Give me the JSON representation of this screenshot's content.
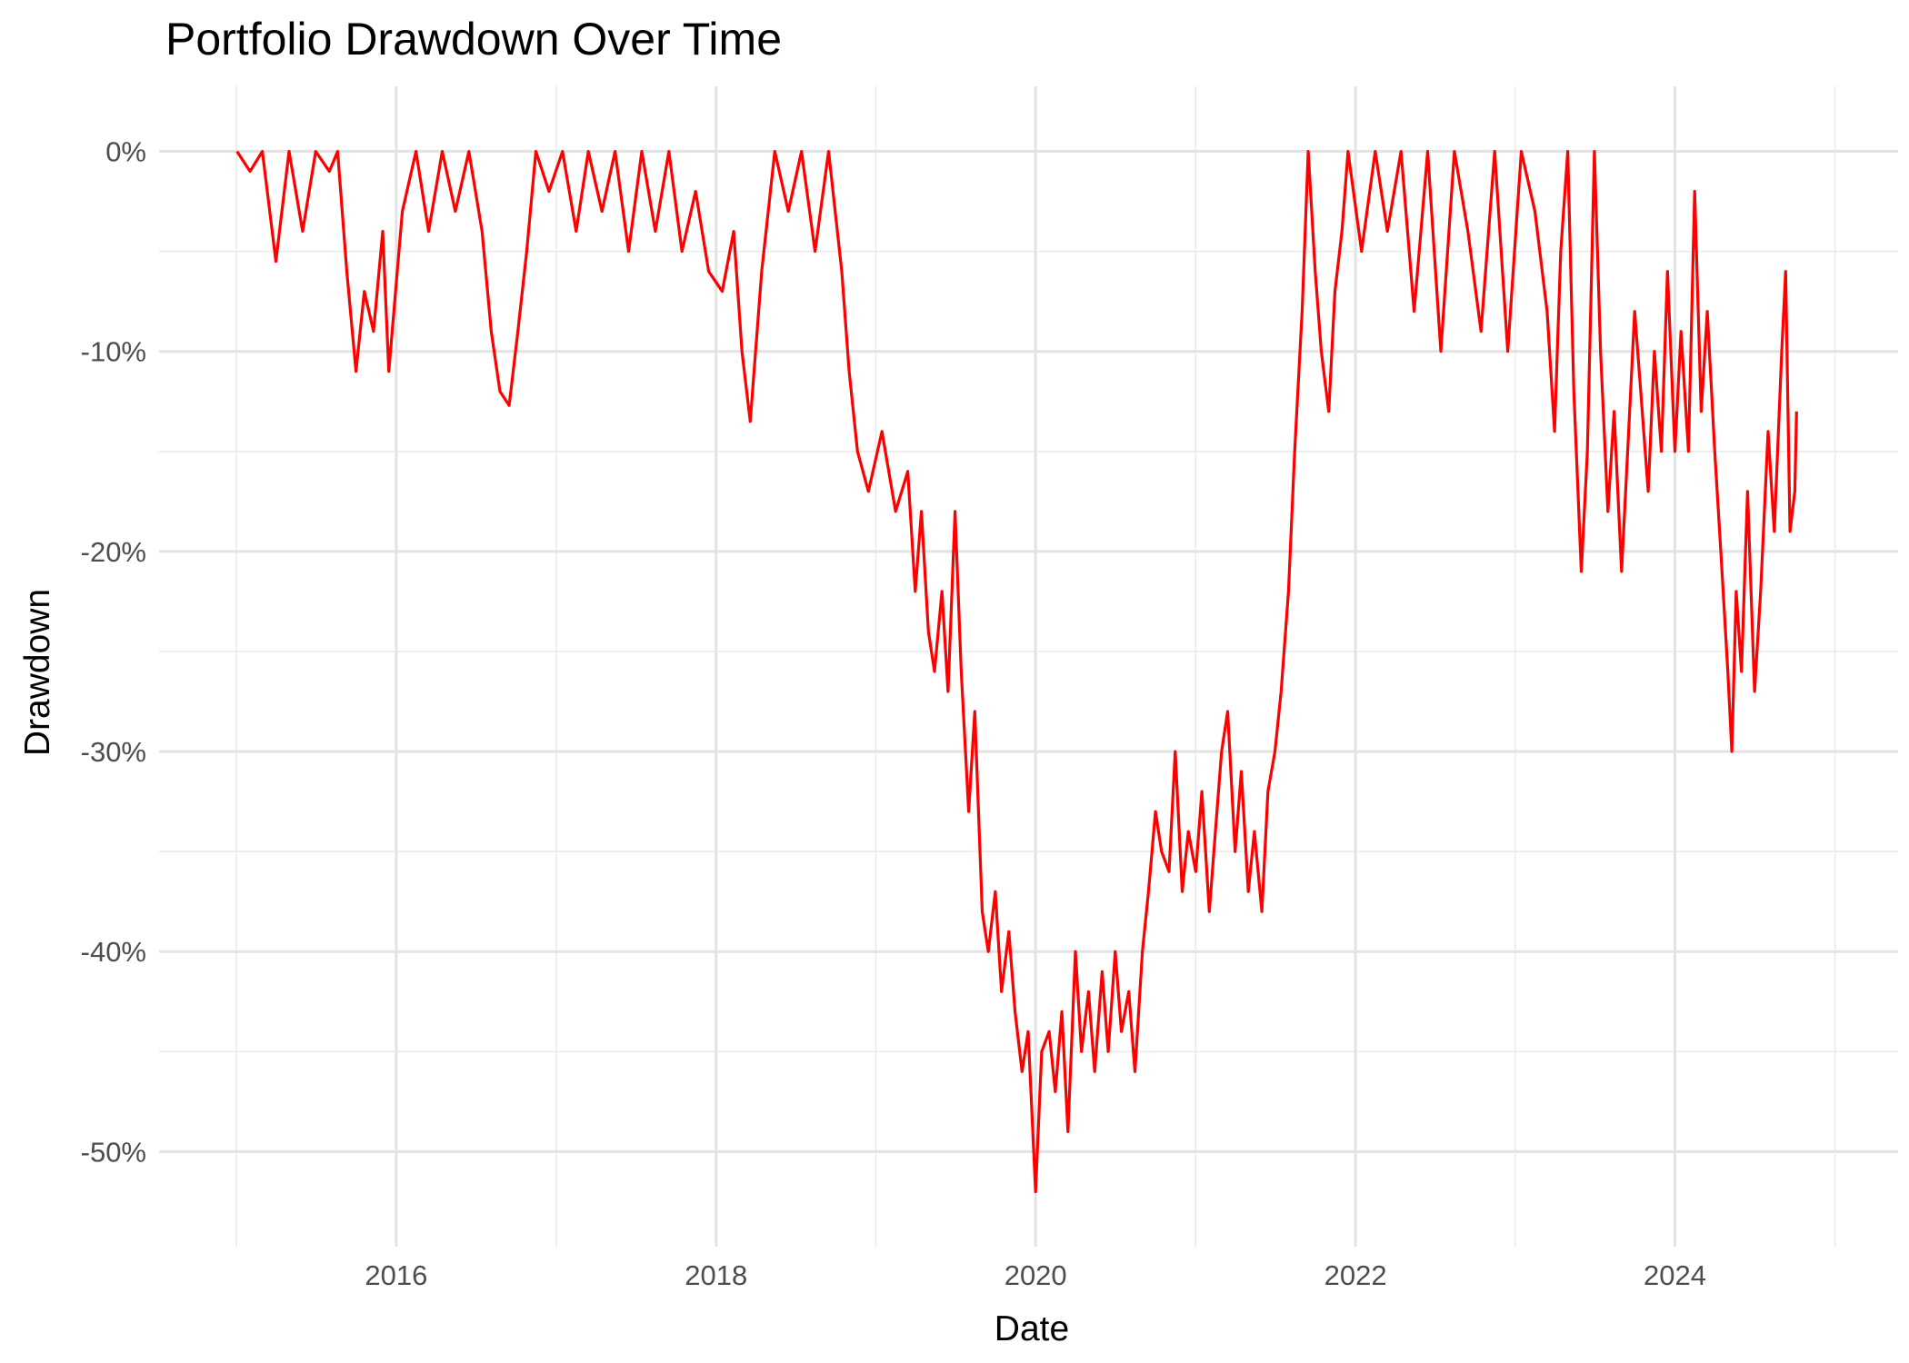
{
  "chart_data": {
    "type": "line",
    "title": "Portfolio Drawdown Over Time",
    "xlabel": "Date",
    "ylabel": "Drawdown",
    "x_range": [
      "2014-07-08",
      "2025-05-25"
    ],
    "ylim": [
      -0.5475,
      0.0325
    ],
    "x_ticks": [
      {
        "date": "2016-01-01",
        "label": "2016"
      },
      {
        "date": "2018-01-01",
        "label": "2018"
      },
      {
        "date": "2020-01-01",
        "label": "2020"
      },
      {
        "date": "2022-01-01",
        "label": "2022"
      },
      {
        "date": "2024-01-01",
        "label": "2024"
      }
    ],
    "x_minor_ticks": [
      "2015-01-01",
      "2017-01-01",
      "2019-01-01",
      "2021-01-01",
      "2023-01-01",
      "2025-01-01"
    ],
    "y_ticks": [
      {
        "value": 0,
        "label": "0%"
      },
      {
        "value": -0.1,
        "label": "-10%"
      },
      {
        "value": -0.2,
        "label": "-20%"
      },
      {
        "value": -0.3,
        "label": "-30%"
      },
      {
        "value": -0.4,
        "label": "-40%"
      },
      {
        "value": -0.5,
        "label": "-50%"
      }
    ],
    "y_minor_ticks": [
      -0.05,
      -0.15,
      -0.25,
      -0.35,
      -0.45
    ],
    "grid": true,
    "legend": "none",
    "line_color": "#ff0000",
    "series": [
      {
        "dates": [
          "2015-01-02",
          "2015-02-01",
          "2015-03-01",
          "2015-04-01",
          "2015-05-01",
          "2015-06-01",
          "2015-07-01",
          "2015-08-01",
          "2015-08-20",
          "2015-09-10",
          "2015-10-01",
          "2015-10-20",
          "2015-11-10",
          "2015-12-01",
          "2015-12-15",
          "2016-01-15",
          "2016-02-15",
          "2016-03-15",
          "2016-04-15",
          "2016-05-15",
          "2016-06-15",
          "2016-07-15",
          "2016-08-05",
          "2016-08-25",
          "2016-09-15",
          "2016-10-05",
          "2016-10-25",
          "2016-11-15",
          "2016-12-15",
          "2017-01-15",
          "2017-02-15",
          "2017-03-15",
          "2017-04-15",
          "2017-05-15",
          "2017-06-15",
          "2017-07-15",
          "2017-08-15",
          "2017-09-15",
          "2017-10-15",
          "2017-11-15",
          "2017-12-15",
          "2018-01-15",
          "2018-02-10",
          "2018-03-01",
          "2018-03-20",
          "2018-04-15",
          "2018-05-15",
          "2018-06-15",
          "2018-07-15",
          "2018-08-15",
          "2018-09-15",
          "2018-10-15",
          "2018-11-01",
          "2018-11-20",
          "2018-12-15",
          "2019-01-15",
          "2019-02-15",
          "2019-03-15",
          "2019-04-01",
          "2019-04-15",
          "2019-05-01",
          "2019-05-15",
          "2019-06-01",
          "2019-06-15",
          "2019-07-01",
          "2019-07-15",
          "2019-08-01",
          "2019-08-15",
          "2019-09-01",
          "2019-09-15",
          "2019-10-01",
          "2019-10-15",
          "2019-11-01",
          "2019-11-15",
          "2019-12-01",
          "2019-12-15",
          "2020-01-01",
          "2020-01-15",
          "2020-02-01",
          "2020-02-15",
          "2020-03-01",
          "2020-03-15",
          "2020-04-01",
          "2020-04-15",
          "2020-05-01",
          "2020-05-15",
          "2020-06-01",
          "2020-06-15",
          "2020-07-01",
          "2020-07-15",
          "2020-08-01",
          "2020-08-15",
          "2020-09-01",
          "2020-09-15",
          "2020-10-01",
          "2020-10-15",
          "2020-11-01",
          "2020-11-15",
          "2020-12-01",
          "2020-12-15",
          "2021-01-01",
          "2021-01-15",
          "2021-02-01",
          "2021-02-15",
          "2021-03-01",
          "2021-03-15",
          "2021-04-01",
          "2021-04-15",
          "2021-05-01",
          "2021-05-15",
          "2021-06-01",
          "2021-06-15",
          "2021-07-01",
          "2021-07-15",
          "2021-08-01",
          "2021-08-15",
          "2021-09-01",
          "2021-09-15",
          "2021-10-01",
          "2021-10-15",
          "2021-11-01",
          "2021-11-15",
          "2021-12-01",
          "2021-12-15",
          "2022-01-15",
          "2022-02-15",
          "2022-03-15",
          "2022-04-15",
          "2022-05-15",
          "2022-06-15",
          "2022-07-15",
          "2022-08-15",
          "2022-09-15",
          "2022-10-15",
          "2022-11-15",
          "2022-12-15",
          "2023-01-15",
          "2023-02-15",
          "2023-03-15",
          "2023-04-01",
          "2023-04-15",
          "2023-05-01",
          "2023-05-15",
          "2023-06-01",
          "2023-06-15",
          "2023-07-01",
          "2023-07-15",
          "2023-08-01",
          "2023-08-15",
          "2023-09-01",
          "2023-09-15",
          "2023-10-01",
          "2023-10-15",
          "2023-11-01",
          "2023-11-15",
          "2023-12-01",
          "2023-12-15",
          "2024-01-01",
          "2024-01-15",
          "2024-02-01",
          "2024-02-15",
          "2024-03-01",
          "2024-03-15",
          "2024-04-01",
          "2024-04-15",
          "2024-05-01",
          "2024-05-10",
          "2024-05-20",
          "2024-06-01",
          "2024-06-15",
          "2024-07-01",
          "2024-07-15",
          "2024-08-01",
          "2024-08-15",
          "2024-09-01",
          "2024-09-10",
          "2024-09-20",
          "2024-10-01",
          "2024-10-05"
        ],
        "values": [
          0.0,
          -0.01,
          -0.0,
          -0.055,
          -0.0,
          -0.04,
          -0.0,
          -0.01,
          -0.0,
          -0.06,
          -0.11,
          -0.07,
          -0.09,
          -0.04,
          -0.11,
          -0.03,
          -0.0,
          -0.04,
          -0.0,
          -0.03,
          -0.0,
          -0.04,
          -0.09,
          -0.12,
          -0.127,
          -0.09,
          -0.05,
          -0.0,
          -0.02,
          -0.0,
          -0.04,
          -0.0,
          -0.03,
          -0.0,
          -0.05,
          -0.0,
          -0.04,
          -0.0,
          -0.05,
          -0.02,
          -0.06,
          -0.07,
          -0.04,
          -0.1,
          -0.135,
          -0.06,
          -0.0,
          -0.03,
          -0.0,
          -0.05,
          -0.0,
          -0.06,
          -0.11,
          -0.15,
          -0.17,
          -0.14,
          -0.18,
          -0.16,
          -0.22,
          -0.18,
          -0.24,
          -0.26,
          -0.22,
          -0.27,
          -0.18,
          -0.26,
          -0.33,
          -0.28,
          -0.38,
          -0.4,
          -0.37,
          -0.42,
          -0.39,
          -0.43,
          -0.46,
          -0.44,
          -0.52,
          -0.45,
          -0.44,
          -0.47,
          -0.43,
          -0.49,
          -0.4,
          -0.45,
          -0.42,
          -0.46,
          -0.41,
          -0.45,
          -0.4,
          -0.44,
          -0.42,
          -0.46,
          -0.4,
          -0.37,
          -0.33,
          -0.35,
          -0.36,
          -0.3,
          -0.37,
          -0.34,
          -0.36,
          -0.32,
          -0.38,
          -0.34,
          -0.3,
          -0.28,
          -0.35,
          -0.31,
          -0.37,
          -0.34,
          -0.38,
          -0.32,
          -0.3,
          -0.27,
          -0.22,
          -0.15,
          -0.08,
          -0.0,
          -0.06,
          -0.1,
          -0.13,
          -0.07,
          -0.04,
          -0.0,
          -0.05,
          -0.0,
          -0.04,
          -0.0,
          -0.08,
          -0.0,
          -0.1,
          -0.0,
          -0.04,
          -0.09,
          -0.0,
          -0.1,
          -0.0,
          -0.03,
          -0.08,
          -0.14,
          -0.05,
          -0.0,
          -0.12,
          -0.21,
          -0.15,
          -0.0,
          -0.1,
          -0.18,
          -0.13,
          -0.21,
          -0.15,
          -0.08,
          -0.12,
          -0.17,
          -0.1,
          -0.15,
          -0.06,
          -0.15,
          -0.09,
          -0.15,
          -0.02,
          -0.13,
          -0.08,
          -0.15,
          -0.2,
          -0.26,
          -0.3,
          -0.22,
          -0.26,
          -0.17,
          -0.27,
          -0.22,
          -0.14,
          -0.19,
          -0.1,
          -0.06,
          -0.19,
          -0.17,
          -0.13
        ]
      }
    ]
  }
}
